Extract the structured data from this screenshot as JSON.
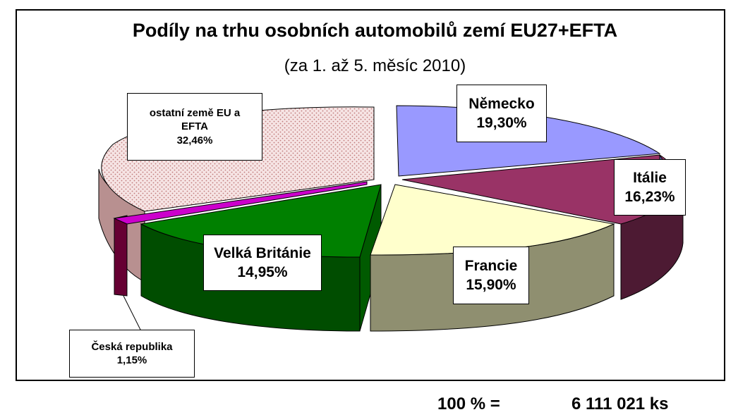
{
  "chart_data": {
    "type": "pie",
    "title": "Podíly na trhu osobních automobilů zemí EU27+EFTA",
    "subtitle": "(za 1. až 5. měsíc 2010)",
    "slices": [
      {
        "label": "Německo",
        "value_label": "19,30%",
        "value": 19.3,
        "color": "#9999ff"
      },
      {
        "label": "Itálie",
        "value_label": "16,23%",
        "value": 16.23,
        "color": "#993366"
      },
      {
        "label": "Francie",
        "value_label": "15,90%",
        "value": 15.9,
        "color": "#ffffcc"
      },
      {
        "label": "Velká Británie",
        "value_label": "14,95%",
        "value": 14.95,
        "color": "#008000"
      },
      {
        "label": "Česká republika",
        "value_label": "1,15%",
        "value": 1.15,
        "color": "#cc00cc"
      },
      {
        "label": "ostatní země EU a EFTA",
        "label_line1": "ostatní země EU a",
        "label_line2": "EFTA",
        "value_label": "32,46%",
        "value": 32.46,
        "color": "#f4dede"
      }
    ]
  },
  "footer": {
    "total_prefix": "100 % =",
    "total_value": "6 111 021 ks"
  }
}
